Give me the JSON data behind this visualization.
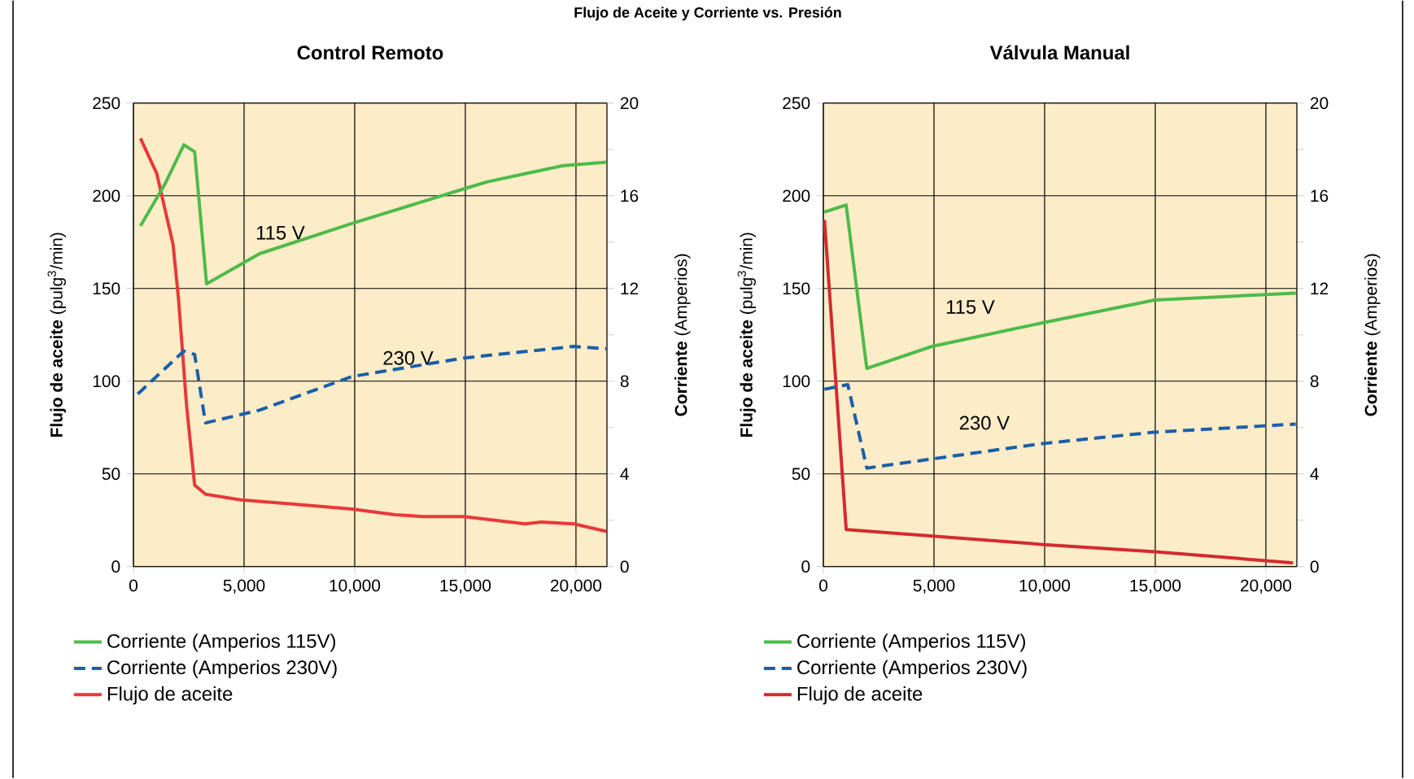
{
  "chart_data": [
    {
      "type": "line",
      "title": "Control Remoto",
      "annotations": [
        "Flujo de Aceite y Corriente vs. Presión",
        "115 V",
        "230 V"
      ],
      "ylabel": "**Flujo de aceite** (pulg$^{3}$/min)",
      "y2label": "**Corriente** (Amperios)",
      "xlim": [
        0,
        21400
      ],
      "xticks": [
        0,
        {
          "value": 5000,
          "label": "5,000"
        },
        {
          "value": 10000,
          "label": "10,000"
        },
        {
          "value": 15000,
          "label": "15,000"
        },
        {
          "value": 20000,
          "label": "20,000"
        }
      ],
      "ylim": [
        0,
        250
      ],
      "yticks": [
        0,
        50,
        100,
        150,
        200,
        250
      ],
      "y2lim": [
        0,
        20
      ],
      "y2ticks": [
        0,
        {
          "value": 2,
          "label": null
        },
        4,
        {
          "value": 6,
          "label": null
        },
        8,
        {
          "value": 10,
          "label": null
        },
        12,
        {
          "value": 14,
          "label": null
        },
        16,
        {
          "value": 18,
          "label": null
        },
        20
      ],
      "grid": true,
      "legend": "bottom",
      "series": [
        {
          "name": "Corriente (Amperios 115V)",
          "color": "#4dbb4a",
          "axis": "y2",
          "line_style": "solid",
          "x": [
            318,
            1420,
            2277,
            2766,
            3305,
            5700,
            9865,
            14934,
            15990,
            17940,
            19413,
            21371
          ],
          "values": [
            14.7,
            16.5,
            18.2,
            17.9,
            12.2,
            13.5,
            14.8,
            16.3,
            16.6,
            17.0,
            17.3,
            17.45
          ]
        },
        {
          "name": "Corriente (Amperios 230V)",
          "color": "#1a5fa8",
          "axis": "y2",
          "line_style": "dashed",
          "x": [
            196,
            2277,
            2766,
            3256,
            5700,
            9865,
            14934,
            19902,
            21371
          ],
          "values": [
            7.45,
            9.3,
            9.15,
            6.2,
            6.75,
            8.2,
            9.0,
            9.5,
            9.4
          ]
        },
        {
          "name": "Flujo de aceite",
          "color": "#e8393a",
          "line_style": "solid",
          "x": [
            318,
            1053,
            1787,
            2032,
            2400,
            2766,
            3256,
            4847,
            6928,
            9865,
            11824,
            13048,
            14934,
            17700,
            18434,
            19902,
            21371
          ],
          "values": [
            231,
            212,
            174,
            145,
            87,
            44,
            39,
            36,
            34,
            31,
            28,
            27,
            27,
            23,
            24,
            23,
            19
          ]
        }
      ]
    },
    {
      "type": "line",
      "title": "Válvula Manual",
      "annotations": [
        "115 V",
        "230 V"
      ],
      "ylabel": "**Flujo de aceite** (pulg$^{3}$/min)",
      "y2label": "**Corriente** (Amperios)",
      "xlim": [
        0,
        21400
      ],
      "xticks": [
        0,
        {
          "value": 5000,
          "label": "5,000"
        },
        {
          "value": 10000,
          "label": "10,000"
        },
        {
          "value": 15000,
          "label": "15,000"
        },
        {
          "value": 20000,
          "label": "20,000"
        }
      ],
      "ylim": [
        0,
        250
      ],
      "yticks": [
        0,
        50,
        100,
        150,
        200,
        250
      ],
      "y2lim": [
        0,
        20
      ],
      "y2ticks": [
        0,
        {
          "value": 2,
          "label": null
        },
        4,
        {
          "value": 6,
          "label": null
        },
        8,
        {
          "value": 10,
          "label": null
        },
        12,
        {
          "value": 14,
          "label": null
        },
        16,
        {
          "value": 18,
          "label": null
        },
        20
      ],
      "grid": true,
      "legend": "bottom",
      "series": [
        {
          "name": "Corriente (Amperios 115V)",
          "color": "#4dbb4a",
          "axis": "y2",
          "line_style": "solid",
          "x": [
            49,
            1031,
            1963,
            4908,
            9816,
            14969,
            21350
          ],
          "values": [
            15.3,
            15.6,
            8.55,
            9.5,
            10.5,
            11.5,
            11.8
          ]
        },
        {
          "name": "Corriente (Amperios 230V)",
          "color": "#1a5fa8",
          "axis": "y2",
          "line_style": "dashed",
          "x": [
            49,
            1104,
            1963,
            9816,
            14969,
            21350
          ],
          "values": [
            7.65,
            7.85,
            4.25,
            5.3,
            5.8,
            6.15
          ]
        },
        {
          "name": "Flujo de aceite",
          "color": "#d42a2f",
          "line_style": "solid",
          "x": [
            49,
            1031,
            9816,
            14969,
            21227
          ],
          "values": [
            187,
            20,
            12,
            8,
            2
          ]
        }
      ]
    }
  ]
}
